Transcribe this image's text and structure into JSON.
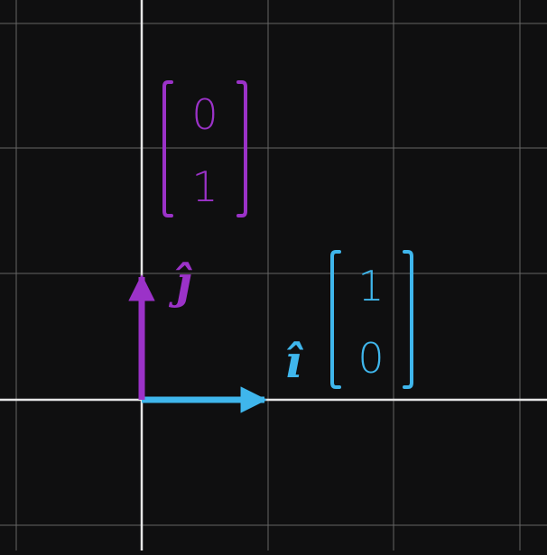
{
  "diagram": {
    "background_color": "#0f0f10",
    "grid_color": "#8a8a8a",
    "axis_color": "#e6e6e6",
    "i_hat": {
      "label": "î",
      "color": "#3fb6ec",
      "vector": [
        "1",
        "0"
      ]
    },
    "j_hat": {
      "label": "ĵ",
      "color": "#9b32c8",
      "vector": [
        "0",
        "1"
      ]
    }
  }
}
